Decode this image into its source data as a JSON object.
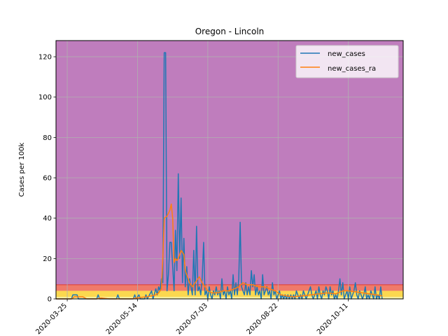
{
  "chart_data": {
    "type": "line",
    "title": "Oregon - Lincoln",
    "xlabel": "",
    "ylabel": "Cases per 100k",
    "ylim": [
      0,
      128
    ],
    "y_ticks": [
      0,
      20,
      40,
      60,
      80,
      100,
      120
    ],
    "x_ticks": [
      "2020-03-25",
      "2020-05-14",
      "2020-07-03",
      "2020-08-22",
      "2020-10-11"
    ],
    "x_range": [
      "2020-03-17",
      "2020-11-19"
    ],
    "grid": true,
    "legend_position": "top-right",
    "risk_bands": [
      {
        "from": 0,
        "to": 1,
        "color": "#f5f0a0"
      },
      {
        "from": 1,
        "to": 4,
        "color": "#fbd84f"
      },
      {
        "from": 4,
        "to": 7,
        "color": "#f07a6a"
      },
      {
        "from": 7,
        "to": 128,
        "color": "#bf7dbd"
      }
    ],
    "threshold_line": {
      "y": 7,
      "color": "#e0443a"
    },
    "series": [
      {
        "name": "new_cases",
        "color": "#1f77b4",
        "points": [
          [
            "2020-03-17",
            0
          ],
          [
            "2020-03-28",
            0
          ],
          [
            "2020-03-29",
            2
          ],
          [
            "2020-04-01",
            2
          ],
          [
            "2020-04-02",
            0
          ],
          [
            "2020-04-15",
            0
          ],
          [
            "2020-04-16",
            2
          ],
          [
            "2020-04-17",
            0
          ],
          [
            "2020-04-29",
            0
          ],
          [
            "2020-04-30",
            2
          ],
          [
            "2020-05-01",
            0
          ],
          [
            "2020-05-11",
            0
          ],
          [
            "2020-05-12",
            2
          ],
          [
            "2020-05-13",
            0
          ],
          [
            "2020-05-15",
            2
          ],
          [
            "2020-05-16",
            0
          ],
          [
            "2020-05-19",
            0
          ],
          [
            "2020-05-20",
            2
          ],
          [
            "2020-05-21",
            0
          ],
          [
            "2020-05-24",
            4
          ],
          [
            "2020-05-25",
            0
          ],
          [
            "2020-05-27",
            5
          ],
          [
            "2020-05-28",
            2
          ],
          [
            "2020-05-29",
            6
          ],
          [
            "2020-05-30",
            4
          ],
          [
            "2020-05-31",
            10
          ],
          [
            "2020-06-01",
            8
          ],
          [
            "2020-06-02",
            122
          ],
          [
            "2020-06-03",
            122
          ],
          [
            "2020-06-04",
            4
          ],
          [
            "2020-06-05",
            12
          ],
          [
            "2020-06-06",
            28
          ],
          [
            "2020-06-07",
            28
          ],
          [
            "2020-06-08",
            16
          ],
          [
            "2020-06-09",
            4
          ],
          [
            "2020-06-10",
            34
          ],
          [
            "2020-06-11",
            14
          ],
          [
            "2020-06-12",
            62
          ],
          [
            "2020-06-13",
            20
          ],
          [
            "2020-06-14",
            50
          ],
          [
            "2020-06-15",
            8
          ],
          [
            "2020-06-16",
            30
          ],
          [
            "2020-06-17",
            6
          ],
          [
            "2020-06-18",
            16
          ],
          [
            "2020-06-19",
            2
          ],
          [
            "2020-06-20",
            10
          ],
          [
            "2020-06-21",
            6
          ],
          [
            "2020-06-22",
            2
          ],
          [
            "2020-06-23",
            24
          ],
          [
            "2020-06-24",
            2
          ],
          [
            "2020-06-25",
            36
          ],
          [
            "2020-06-26",
            4
          ],
          [
            "2020-06-27",
            6
          ],
          [
            "2020-06-28",
            2
          ],
          [
            "2020-06-29",
            10
          ],
          [
            "2020-06-30",
            28
          ],
          [
            "2020-07-01",
            2
          ],
          [
            "2020-07-02",
            4
          ],
          [
            "2020-07-03",
            0
          ],
          [
            "2020-07-04",
            6
          ],
          [
            "2020-07-05",
            2
          ],
          [
            "2020-07-06",
            0
          ],
          [
            "2020-07-07",
            4
          ],
          [
            "2020-07-08",
            2
          ],
          [
            "2020-07-09",
            6
          ],
          [
            "2020-07-10",
            2
          ],
          [
            "2020-07-11",
            4
          ],
          [
            "2020-07-12",
            0
          ],
          [
            "2020-07-13",
            10
          ],
          [
            "2020-07-14",
            2
          ],
          [
            "2020-07-15",
            4
          ],
          [
            "2020-07-16",
            0
          ],
          [
            "2020-07-17",
            6
          ],
          [
            "2020-07-18",
            2
          ],
          [
            "2020-07-19",
            4
          ],
          [
            "2020-07-20",
            0
          ],
          [
            "2020-07-21",
            12
          ],
          [
            "2020-07-22",
            2
          ],
          [
            "2020-07-23",
            8
          ],
          [
            "2020-07-24",
            2
          ],
          [
            "2020-07-25",
            10
          ],
          [
            "2020-07-26",
            38
          ],
          [
            "2020-07-27",
            6
          ],
          [
            "2020-07-28",
            4
          ],
          [
            "2020-07-29",
            2
          ],
          [
            "2020-07-30",
            8
          ],
          [
            "2020-07-31",
            2
          ],
          [
            "2020-08-01",
            6
          ],
          [
            "2020-08-02",
            2
          ],
          [
            "2020-08-03",
            14
          ],
          [
            "2020-08-04",
            6
          ],
          [
            "2020-08-05",
            12
          ],
          [
            "2020-08-06",
            2
          ],
          [
            "2020-08-07",
            6
          ],
          [
            "2020-08-08",
            2
          ],
          [
            "2020-08-09",
            4
          ],
          [
            "2020-08-10",
            0
          ],
          [
            "2020-08-11",
            12
          ],
          [
            "2020-08-12",
            2
          ],
          [
            "2020-08-13",
            4
          ],
          [
            "2020-08-14",
            6
          ],
          [
            "2020-08-15",
            2
          ],
          [
            "2020-08-16",
            4
          ],
          [
            "2020-08-17",
            0
          ],
          [
            "2020-08-18",
            8
          ],
          [
            "2020-08-19",
            2
          ],
          [
            "2020-08-20",
            4
          ],
          [
            "2020-08-21",
            0
          ],
          [
            "2020-08-22",
            2
          ],
          [
            "2020-08-23",
            4
          ],
          [
            "2020-08-24",
            0
          ],
          [
            "2020-08-25",
            2
          ],
          [
            "2020-08-26",
            0
          ],
          [
            "2020-08-27",
            2
          ],
          [
            "2020-08-28",
            0
          ],
          [
            "2020-08-29",
            2
          ],
          [
            "2020-08-30",
            0
          ],
          [
            "2020-08-31",
            2
          ],
          [
            "2020-09-01",
            0
          ],
          [
            "2020-09-02",
            2
          ],
          [
            "2020-09-03",
            0
          ],
          [
            "2020-09-04",
            4
          ],
          [
            "2020-09-05",
            2
          ],
          [
            "2020-09-06",
            0
          ],
          [
            "2020-09-07",
            2
          ],
          [
            "2020-09-08",
            0
          ],
          [
            "2020-09-09",
            4
          ],
          [
            "2020-09-10",
            2
          ],
          [
            "2020-09-11",
            0
          ],
          [
            "2020-09-12",
            2
          ],
          [
            "2020-09-13",
            4
          ],
          [
            "2020-09-14",
            6
          ],
          [
            "2020-09-15",
            2
          ],
          [
            "2020-09-16",
            0
          ],
          [
            "2020-09-17",
            2
          ],
          [
            "2020-09-18",
            4
          ],
          [
            "2020-09-19",
            0
          ],
          [
            "2020-09-20",
            6
          ],
          [
            "2020-09-21",
            2
          ],
          [
            "2020-09-22",
            0
          ],
          [
            "2020-09-23",
            4
          ],
          [
            "2020-09-24",
            2
          ],
          [
            "2020-09-25",
            6
          ],
          [
            "2020-09-26",
            4
          ],
          [
            "2020-09-27",
            0
          ],
          [
            "2020-09-28",
            6
          ],
          [
            "2020-09-29",
            2
          ],
          [
            "2020-09-30",
            4
          ],
          [
            "2020-10-01",
            0
          ],
          [
            "2020-10-02",
            2
          ],
          [
            "2020-10-03",
            0
          ],
          [
            "2020-10-04",
            4
          ],
          [
            "2020-10-05",
            10
          ],
          [
            "2020-10-06",
            2
          ],
          [
            "2020-10-07",
            8
          ],
          [
            "2020-10-08",
            0
          ],
          [
            "2020-10-09",
            2
          ],
          [
            "2020-10-10",
            4
          ],
          [
            "2020-10-11",
            0
          ],
          [
            "2020-10-12",
            6
          ],
          [
            "2020-10-13",
            0
          ],
          [
            "2020-10-14",
            2
          ],
          [
            "2020-10-15",
            4
          ],
          [
            "2020-10-16",
            8
          ],
          [
            "2020-10-17",
            2
          ],
          [
            "2020-10-18",
            0
          ],
          [
            "2020-10-19",
            4
          ],
          [
            "2020-10-20",
            2
          ],
          [
            "2020-10-21",
            0
          ],
          [
            "2020-10-22",
            2
          ],
          [
            "2020-10-23",
            6
          ],
          [
            "2020-10-24",
            0
          ],
          [
            "2020-10-25",
            2
          ],
          [
            "2020-10-26",
            0
          ],
          [
            "2020-10-27",
            4
          ],
          [
            "2020-10-28",
            2
          ],
          [
            "2020-10-29",
            0
          ],
          [
            "2020-10-30",
            6
          ],
          [
            "2020-10-31",
            0
          ],
          [
            "2020-11-01",
            2
          ],
          [
            "2020-11-02",
            0
          ],
          [
            "2020-11-03",
            6
          ],
          [
            "2020-11-04",
            0
          ]
        ]
      },
      {
        "name": "new_cases_ra",
        "color": "#ff7f0e",
        "points": [
          [
            "2020-03-17",
            0
          ],
          [
            "2020-03-28",
            0
          ],
          [
            "2020-03-30",
            1
          ],
          [
            "2020-04-05",
            1
          ],
          [
            "2020-04-08",
            0
          ],
          [
            "2020-04-15",
            0
          ],
          [
            "2020-04-18",
            0.5
          ],
          [
            "2020-04-24",
            0
          ],
          [
            "2020-05-10",
            0
          ],
          [
            "2020-05-13",
            0.5
          ],
          [
            "2020-05-20",
            1
          ],
          [
            "2020-05-24",
            1.5
          ],
          [
            "2020-05-27",
            2
          ],
          [
            "2020-05-29",
            3
          ],
          [
            "2020-05-31",
            5
          ],
          [
            "2020-06-01",
            20
          ],
          [
            "2020-06-02",
            40
          ],
          [
            "2020-06-04",
            41
          ],
          [
            "2020-06-06",
            44
          ],
          [
            "2020-06-07",
            47
          ],
          [
            "2020-06-08",
            40
          ],
          [
            "2020-06-09",
            18
          ],
          [
            "2020-06-10",
            20
          ],
          [
            "2020-06-11",
            19
          ],
          [
            "2020-06-12",
            20
          ],
          [
            "2020-06-14",
            24
          ],
          [
            "2020-06-16",
            22
          ],
          [
            "2020-06-17",
            14
          ],
          [
            "2020-06-18",
            12
          ],
          [
            "2020-06-20",
            8
          ],
          [
            "2020-06-22",
            6
          ],
          [
            "2020-06-24",
            8
          ],
          [
            "2020-06-26",
            10
          ],
          [
            "2020-06-27",
            11
          ],
          [
            "2020-06-29",
            8
          ],
          [
            "2020-07-01",
            6
          ],
          [
            "2020-07-03",
            4
          ],
          [
            "2020-07-06",
            3
          ],
          [
            "2020-07-10",
            3
          ],
          [
            "2020-07-14",
            4
          ],
          [
            "2020-07-18",
            4
          ],
          [
            "2020-07-22",
            5
          ],
          [
            "2020-07-25",
            6
          ],
          [
            "2020-07-28",
            8
          ],
          [
            "2020-07-31",
            7
          ],
          [
            "2020-08-04",
            7
          ],
          [
            "2020-08-08",
            6
          ],
          [
            "2020-08-12",
            6
          ],
          [
            "2020-08-16",
            5
          ],
          [
            "2020-08-20",
            4
          ],
          [
            "2020-08-24",
            2
          ],
          [
            "2020-08-28",
            1.5
          ],
          [
            "2020-09-02",
            1
          ],
          [
            "2020-09-08",
            1.5
          ],
          [
            "2020-09-14",
            2
          ],
          [
            "2020-09-20",
            2.5
          ],
          [
            "2020-09-26",
            3
          ],
          [
            "2020-10-02",
            2.5
          ],
          [
            "2020-10-07",
            4
          ],
          [
            "2020-10-11",
            4
          ],
          [
            "2020-10-16",
            3.5
          ],
          [
            "2020-10-21",
            3
          ],
          [
            "2020-10-26",
            2.5
          ],
          [
            "2020-10-31",
            2
          ],
          [
            "2020-11-04",
            1.5
          ]
        ]
      }
    ]
  }
}
